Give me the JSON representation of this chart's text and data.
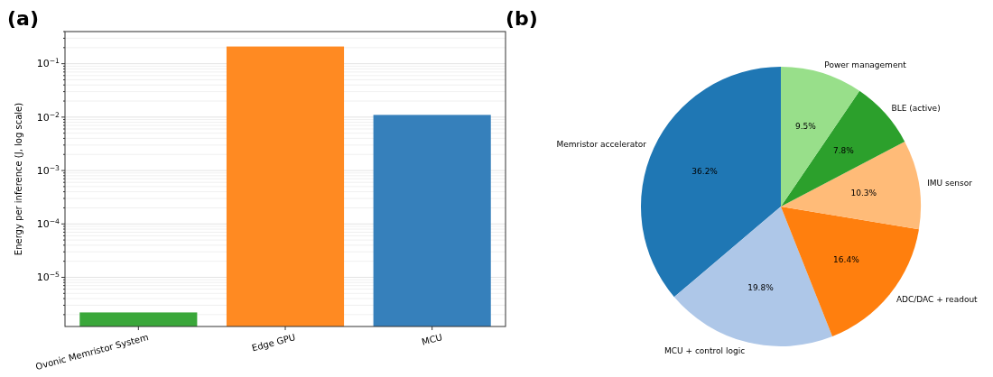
{
  "chart_data": [
    {
      "type": "bar",
      "title": "(a)",
      "ylabel": "Energy per inference (J, log scale)",
      "log": "y",
      "grid": "y",
      "categories": [
        "Ovonic Memristor System",
        "Edge GPU",
        "MCU"
      ],
      "values": [
        2.2e-06,
        0.21,
        0.011
      ],
      "colors": [
        "#3aa73a",
        "#ff8a22",
        "#3680bb"
      ],
      "ylim": [
        1.2e-06,
        0.4
      ],
      "yticks": [
        {
          "value": 1e-05,
          "label": "10$^{−5}$"
        },
        {
          "value": 0.0001,
          "label": "10$^{−4}$"
        },
        {
          "value": 0.001,
          "label": "10$^{−3}$"
        },
        {
          "value": 0.01,
          "label": "10$^{−2}$"
        },
        {
          "value": 0.1,
          "label": "10$^{−1}$"
        },
        {
          "value": 2e-06,
          "label": null
        },
        {
          "value": 3e-06,
          "label": null
        },
        {
          "value": 4e-06,
          "label": null
        },
        {
          "value": 5e-06,
          "label": null
        },
        {
          "value": 6e-06,
          "label": null
        },
        {
          "value": 7e-06,
          "label": null
        },
        {
          "value": 8e-06,
          "label": null
        },
        {
          "value": 9e-06,
          "label": null
        },
        {
          "value": 2e-05,
          "label": null
        },
        {
          "value": 3e-05,
          "label": null
        },
        {
          "value": 4e-05,
          "label": null
        },
        {
          "value": 5e-05,
          "label": null
        },
        {
          "value": 6e-05,
          "label": null
        },
        {
          "value": 7e-05,
          "label": null
        },
        {
          "value": 8e-05,
          "label": null
        },
        {
          "value": 9e-05,
          "label": null
        },
        {
          "value": 0.0002,
          "label": null
        },
        {
          "value": 0.0003,
          "label": null
        },
        {
          "value": 0.0004,
          "label": null
        },
        {
          "value": 0.0005,
          "label": null
        },
        {
          "value": 0.0006,
          "label": null
        },
        {
          "value": 0.0007,
          "label": null
        },
        {
          "value": 0.0008,
          "label": null
        },
        {
          "value": 0.0009,
          "label": null
        },
        {
          "value": 0.002,
          "label": null
        },
        {
          "value": 0.003,
          "label": null
        },
        {
          "value": 0.004,
          "label": null
        },
        {
          "value": 0.005,
          "label": null
        },
        {
          "value": 0.006,
          "label": null
        },
        {
          "value": 0.007,
          "label": null
        },
        {
          "value": 0.008,
          "label": null
        },
        {
          "value": 0.009,
          "label": null
        },
        {
          "value": 0.02,
          "label": null
        },
        {
          "value": 0.03,
          "label": null
        },
        {
          "value": 0.04,
          "label": null
        },
        {
          "value": 0.05,
          "label": null
        },
        {
          "value": 0.06,
          "label": null
        },
        {
          "value": 0.07,
          "label": null
        },
        {
          "value": 0.08,
          "label": null
        },
        {
          "value": 0.09,
          "label": null
        },
        {
          "value": 0.2,
          "label": null
        },
        {
          "value": 0.3,
          "label": null
        },
        {
          "value": 0.4,
          "label": null
        }
      ]
    },
    {
      "type": "pie",
      "title": "(b)",
      "value_labels": [
        "36.2%",
        "19.8%",
        "16.4%",
        "10.3%",
        "7.8%",
        "9.5%"
      ],
      "categories": [
        "Memristor accelerator",
        "MCU + control logic",
        "ADC/DAC + readout",
        "IMU sensor",
        "BLE (active)",
        "Power management"
      ],
      "values": [
        36.2,
        19.8,
        16.4,
        10.3,
        7.8,
        9.5
      ],
      "colors": [
        "#1f77b4",
        "#aec7e8",
        "#ff7f0e",
        "#ffbb78",
        "#2ca02c",
        "#98df8a"
      ]
    }
  ]
}
